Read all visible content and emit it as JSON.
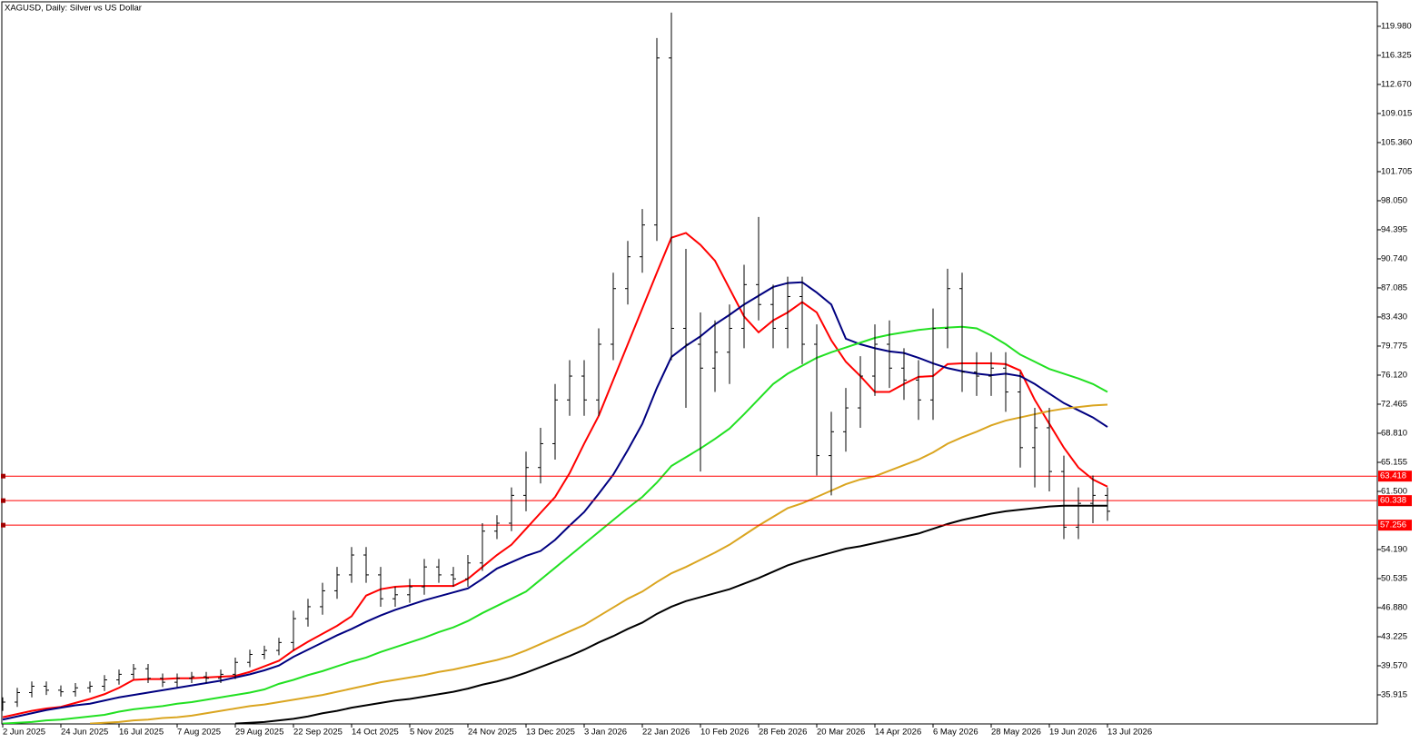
{
  "chart_data": {
    "type": "ohlc",
    "title": "XAGUSD, Daily:  Silver vs US Dollar",
    "categories": [
      "2 Jun 2025",
      null,
      null,
      null,
      "24 Jun 2025",
      null,
      null,
      null,
      "16 Jul 2025",
      null,
      null,
      null,
      "7 Aug 2025",
      null,
      null,
      null,
      "29 Aug 2025",
      null,
      null,
      null,
      "22 Sep 2025",
      null,
      null,
      null,
      "14 Oct 2025",
      null,
      null,
      null,
      "5 Nov 2025",
      null,
      null,
      null,
      "24 Nov 2025",
      null,
      null,
      null,
      "13 Dec 2025",
      null,
      null,
      null,
      "3 Jan 2026",
      null,
      null,
      null,
      "22 Jan 2026",
      null,
      null,
      null,
      "10 Feb 2026",
      null,
      null,
      null,
      "28 Feb 2026",
      null,
      null,
      null,
      "20 Mar 2026",
      null,
      null,
      null,
      "14 Apr 2026",
      null,
      null,
      null,
      "6 May 2026",
      null,
      null,
      null,
      "28 May 2026",
      null,
      null,
      null,
      "19 Jun 2026",
      null,
      null,
      null,
      "13 Jul 2026"
    ],
    "open": [
      34.5,
      35.0,
      36.2,
      37.0,
      36.5,
      36.3,
      36.8,
      37.0,
      37.8,
      38.5,
      39.2,
      38.0,
      37.5,
      38.0,
      38.2,
      38.0,
      38.5,
      40.0,
      41.0,
      41.5,
      42.5,
      45.5,
      47.0,
      49.0,
      51.0,
      53.5,
      51.0,
      48.0,
      48.5,
      49.5,
      52.0,
      51.0,
      50.5,
      52.5,
      56.5,
      57.5,
      61.0,
      64.5,
      67.5,
      73.0,
      76.0,
      73.0,
      80.0,
      87.0,
      91.0,
      95.0,
      116.0,
      82.0,
      80.0,
      77.0,
      79.0,
      82.0,
      87.5,
      85.0,
      82.0,
      86.0,
      80.0,
      66.0,
      69.0,
      72.0,
      76.0,
      80.0,
      77.0,
      75.5,
      73.0,
      82.0,
      87.0,
      76.5,
      76.0,
      77.0,
      74.0,
      67.0,
      69.5,
      64.0,
      57.0,
      60.0,
      61.0
    ],
    "high": [
      35.6,
      36.8,
      37.6,
      37.6,
      37.1,
      37.4,
      37.6,
      38.4,
      39.1,
      39.8,
      39.8,
      38.6,
      38.6,
      38.8,
      38.8,
      39.1,
      40.6,
      41.6,
      42.1,
      43.1,
      46.5,
      48.0,
      50.0,
      52.0,
      54.5,
      54.5,
      52.0,
      49.5,
      50.5,
      53.0,
      53.0,
      52.0,
      53.5,
      57.5,
      58.5,
      62.0,
      66.5,
      69.5,
      75.0,
      78.0,
      78.0,
      82.0,
      89.0,
      93.0,
      97.0,
      118.5,
      121.7,
      92.0,
      84.0,
      83.0,
      85.0,
      90.0,
      96.0,
      87.5,
      88.5,
      88.5,
      82.5,
      71.5,
      74.5,
      78.5,
      82.5,
      83.0,
      79.5,
      78.0,
      84.5,
      89.5,
      89.0,
      79.0,
      79.0,
      79.0,
      76.5,
      72.0,
      72.0,
      66.0,
      62.0,
      63.5,
      62.0
    ],
    "low": [
      33.9,
      34.4,
      35.6,
      35.9,
      35.7,
      35.7,
      36.2,
      36.4,
      37.2,
      37.9,
      37.4,
      36.9,
      36.9,
      37.4,
      37.4,
      37.4,
      37.9,
      39.4,
      40.4,
      40.9,
      41.5,
      44.5,
      46.0,
      48.0,
      50.0,
      50.0,
      47.0,
      47.0,
      47.5,
      48.5,
      50.0,
      49.5,
      49.5,
      51.5,
      55.5,
      56.5,
      59.0,
      62.5,
      65.5,
      71.0,
      71.0,
      71.0,
      78.0,
      85.0,
      89.0,
      93.0,
      78.0,
      72.0,
      64.0,
      74.0,
      75.0,
      79.5,
      83.0,
      79.5,
      79.5,
      77.5,
      63.5,
      61.0,
      66.5,
      69.5,
      73.5,
      74.5,
      73.0,
      70.5,
      70.5,
      79.5,
      74.0,
      73.5,
      73.5,
      71.5,
      64.5,
      62.0,
      61.5,
      55.5,
      55.5,
      57.5,
      57.8
    ],
    "close": [
      35.0,
      36.2,
      37.0,
      36.5,
      36.3,
      36.8,
      37.0,
      37.8,
      38.5,
      39.2,
      38.0,
      37.5,
      38.0,
      38.2,
      38.0,
      38.5,
      40.0,
      41.0,
      41.5,
      42.5,
      45.5,
      47.0,
      49.0,
      51.0,
      53.5,
      51.0,
      48.0,
      48.5,
      49.5,
      52.0,
      51.0,
      50.5,
      52.5,
      56.5,
      57.5,
      61.0,
      64.5,
      67.5,
      73.0,
      76.0,
      73.0,
      80.0,
      87.0,
      91.0,
      95.0,
      116.0,
      82.0,
      80.0,
      77.0,
      79.0,
      82.0,
      87.5,
      85.0,
      82.0,
      86.0,
      80.0,
      66.0,
      69.0,
      72.0,
      76.0,
      80.0,
      77.0,
      75.5,
      73.0,
      82.0,
      87.0,
      76.5,
      76.0,
      77.0,
      74.0,
      67.0,
      69.5,
      64.0,
      57.0,
      60.0,
      61.0,
      59.0
    ],
    "bar_color": "#000000",
    "series": [
      {
        "color": "#ff0000",
        "values": [
          33.1,
          33.5,
          33.9,
          34.2,
          34.4,
          34.9,
          35.4,
          36.0,
          36.8,
          37.8,
          37.9,
          37.9,
          38.0,
          38.0,
          38.1,
          38.2,
          38.3,
          38.8,
          39.5,
          40.2,
          41.5,
          42.6,
          43.6,
          44.6,
          45.8,
          48.4,
          49.2,
          49.5,
          49.6,
          49.6,
          49.6,
          49.6,
          50.5,
          52.0,
          53.5,
          54.8,
          56.8,
          58.8,
          60.8,
          63.8,
          67.5,
          71.0,
          75.5,
          80.0,
          84.5,
          89.0,
          93.4,
          94.0,
          92.5,
          90.5,
          87.0,
          83.5,
          81.5,
          83.0,
          84.0,
          85.3,
          84.0,
          80.5,
          77.8,
          76.0,
          74.0,
          74.0,
          75.0,
          75.9,
          76.0,
          77.5,
          77.6,
          77.6,
          77.6,
          77.5,
          76.7,
          73.0,
          70.0,
          67.0,
          64.5,
          63.0,
          62.1
        ]
      },
      {
        "color": "#000080",
        "values": [
          32.8,
          33.2,
          33.6,
          34.0,
          34.3,
          34.6,
          34.8,
          35.2,
          35.6,
          35.9,
          36.2,
          36.5,
          36.8,
          37.1,
          37.4,
          37.7,
          38.1,
          38.5,
          39.0,
          39.6,
          40.7,
          41.6,
          42.5,
          43.4,
          44.2,
          45.1,
          45.9,
          46.6,
          47.2,
          47.8,
          48.3,
          48.8,
          49.3,
          50.5,
          51.8,
          52.6,
          53.4,
          54.0,
          55.4,
          57.2,
          58.9,
          61.2,
          63.6,
          66.7,
          70.0,
          74.5,
          78.4,
          79.8,
          81.0,
          82.5,
          83.7,
          85.0,
          86.1,
          87.2,
          87.7,
          87.8,
          86.5,
          85.0,
          80.7,
          80.0,
          79.5,
          79.1,
          78.9,
          78.3,
          77.6,
          77.0,
          76.6,
          76.3,
          76.1,
          76.3,
          76.0,
          75.0,
          73.8,
          72.6,
          71.7,
          70.8,
          69.6
        ]
      },
      {
        "color": "#22e022",
        "values": [
          32.3,
          32.4,
          32.5,
          32.7,
          32.8,
          33.0,
          33.2,
          33.4,
          33.8,
          34.1,
          34.3,
          34.5,
          34.8,
          35.0,
          35.3,
          35.6,
          35.9,
          36.2,
          36.6,
          37.3,
          37.8,
          38.4,
          38.9,
          39.5,
          40.1,
          40.6,
          41.3,
          41.9,
          42.5,
          43.1,
          43.8,
          44.4,
          45.2,
          46.2,
          47.1,
          48.0,
          48.9,
          50.4,
          51.9,
          53.4,
          54.9,
          56.4,
          57.9,
          59.4,
          60.8,
          62.6,
          64.7,
          65.8,
          66.9,
          68.1,
          69.4,
          71.2,
          73.1,
          75.0,
          76.3,
          77.3,
          78.3,
          79.0,
          79.6,
          80.2,
          80.8,
          81.2,
          81.5,
          81.8,
          82.0,
          82.1,
          82.2,
          82.0,
          81.1,
          80.0,
          78.7,
          77.8,
          76.9,
          76.3,
          75.7,
          75.0,
          74.0
        ]
      },
      {
        "color": "#daa520",
        "values": [
          null,
          null,
          null,
          null,
          null,
          null,
          32.3,
          32.4,
          32.5,
          32.7,
          32.8,
          33.0,
          33.1,
          33.3,
          33.6,
          33.9,
          34.2,
          34.5,
          34.7,
          35.0,
          35.3,
          35.6,
          35.9,
          36.3,
          36.7,
          37.1,
          37.5,
          37.8,
          38.1,
          38.4,
          38.8,
          39.1,
          39.5,
          39.9,
          40.3,
          40.8,
          41.5,
          42.3,
          43.1,
          43.9,
          44.7,
          45.8,
          46.9,
          48.0,
          48.9,
          50.1,
          51.2,
          52.0,
          52.9,
          53.8,
          54.8,
          56.0,
          57.2,
          58.3,
          59.4,
          60.0,
          60.8,
          61.6,
          62.4,
          63.0,
          63.4,
          64.1,
          64.8,
          65.5,
          66.4,
          67.5,
          68.3,
          69.0,
          69.8,
          70.4,
          70.8,
          71.2,
          71.6,
          71.9,
          72.1,
          72.3,
          72.4
        ]
      },
      {
        "color": "#000000",
        "values": [
          null,
          null,
          null,
          null,
          null,
          null,
          null,
          null,
          null,
          null,
          null,
          null,
          null,
          null,
          null,
          null,
          32.3,
          32.4,
          32.5,
          32.7,
          32.9,
          33.2,
          33.6,
          33.9,
          34.3,
          34.6,
          34.9,
          35.2,
          35.4,
          35.7,
          36.0,
          36.3,
          36.7,
          37.2,
          37.6,
          38.1,
          38.7,
          39.4,
          40.1,
          40.8,
          41.6,
          42.5,
          43.3,
          44.2,
          45.0,
          46.1,
          47.0,
          47.7,
          48.2,
          48.7,
          49.2,
          49.9,
          50.6,
          51.4,
          52.2,
          52.8,
          53.3,
          53.8,
          54.3,
          54.6,
          55.0,
          55.4,
          55.8,
          56.2,
          56.8,
          57.4,
          57.9,
          58.3,
          58.7,
          59.0,
          59.2,
          59.4,
          59.6,
          59.7,
          59.7,
          59.7,
          59.7
        ]
      }
    ],
    "levels": [
      63.418,
      60.338,
      57.256
    ],
    "level_color": "#ff0000",
    "ylim": [
      32.26,
      123.06
    ],
    "yticks": [
      {
        "value": 119.98,
        "label": "119.980"
      },
      116.325,
      {
        "value": 112.67,
        "label": "112.670"
      },
      109.015,
      {
        "value": 105.36,
        "label": "105.360"
      },
      101.705,
      {
        "value": 98.05,
        "label": "98.050"
      },
      94.395,
      {
        "value": 90.74,
        "label": "90.740"
      },
      87.085,
      {
        "value": 83.43,
        "label": "83.430"
      },
      79.775,
      {
        "value": 76.12,
        "label": "76.120"
      },
      72.465,
      {
        "value": 68.81,
        "label": "68.810"
      },
      65.155,
      {
        "value": 61.5,
        "label": "61.500"
      },
      {
        "value": 54.19,
        "label": "54.190"
      },
      50.535,
      {
        "value": 46.88,
        "label": "46.880"
      },
      43.225,
      {
        "value": 39.57,
        "label": "39.570"
      },
      35.915
    ],
    "grid": false
  }
}
